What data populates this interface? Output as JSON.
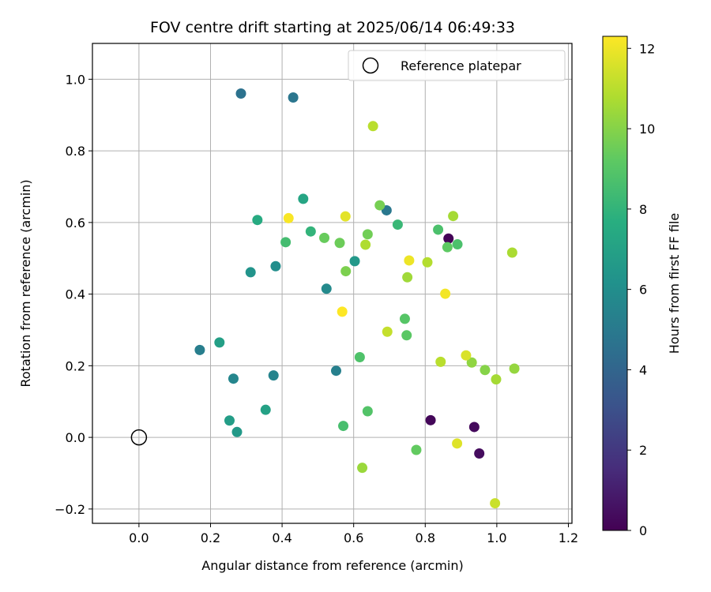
{
  "chart_data": {
    "type": "scatter",
    "title": "FOV centre drift starting at 2025/06/14 06:49:33",
    "xlabel": "Angular distance from reference (arcmin)",
    "ylabel": "Rotation from reference (arcmin)",
    "xlim": [
      -0.13,
      1.21
    ],
    "ylim": [
      -0.24,
      1.1
    ],
    "xticks": [
      0.0,
      0.2,
      0.4,
      0.6,
      0.8,
      1.0,
      1.2
    ],
    "xtick_labels": [
      "0.0",
      "0.2",
      "0.4",
      "0.6",
      "0.8",
      "1.0",
      "1.2"
    ],
    "yticks": [
      -0.2,
      0.0,
      0.2,
      0.4,
      0.6,
      0.8,
      1.0
    ],
    "ytick_labels": [
      "−0.2",
      "0.0",
      "0.2",
      "0.4",
      "0.6",
      "0.8",
      "1.0"
    ],
    "grid": true,
    "legend": {
      "placement": "top-right",
      "entries": [
        "Reference platepar"
      ]
    },
    "reference_point": {
      "x": 0.0,
      "y": 0.0
    },
    "colorbar": {
      "label": "Hours from first FF file",
      "colormap": "viridis",
      "range": [
        0,
        12.3
      ],
      "ticks": [
        0,
        2,
        4,
        6,
        8,
        10,
        12
      ],
      "tick_labels": [
        "0",
        "2",
        "4",
        "6",
        "8",
        "10",
        "12"
      ]
    },
    "points": [
      {
        "x": 0.865,
        "y": 0.555,
        "c": 0.1
      },
      {
        "x": 0.815,
        "y": 0.048,
        "c": 0.2
      },
      {
        "x": 0.937,
        "y": 0.029,
        "c": 0.3
      },
      {
        "x": 0.951,
        "y": -0.045,
        "c": 0.4
      },
      {
        "x": 0.285,
        "y": 0.96,
        "c": 4.6
      },
      {
        "x": 0.431,
        "y": 0.949,
        "c": 4.8
      },
      {
        "x": 0.692,
        "y": 0.634,
        "c": 4.9
      },
      {
        "x": 0.17,
        "y": 0.244,
        "c": 5.2
      },
      {
        "x": 0.551,
        "y": 0.186,
        "c": 5.3
      },
      {
        "x": 0.376,
        "y": 0.173,
        "c": 5.5
      },
      {
        "x": 0.264,
        "y": 0.164,
        "c": 5.6
      },
      {
        "x": 0.524,
        "y": 0.415,
        "c": 5.8
      },
      {
        "x": 0.382,
        "y": 0.478,
        "c": 6.0
      },
      {
        "x": 0.312,
        "y": 0.461,
        "c": 6.3
      },
      {
        "x": 0.603,
        "y": 0.492,
        "c": 6.5
      },
      {
        "x": 0.274,
        "y": 0.015,
        "c": 6.6
      },
      {
        "x": 0.253,
        "y": 0.047,
        "c": 6.8
      },
      {
        "x": 0.225,
        "y": 0.265,
        "c": 6.9
      },
      {
        "x": 0.354,
        "y": 0.077,
        "c": 7.0
      },
      {
        "x": 0.459,
        "y": 0.666,
        "c": 7.2
      },
      {
        "x": 0.331,
        "y": 0.607,
        "c": 7.5
      },
      {
        "x": 0.48,
        "y": 0.575,
        "c": 8.0
      },
      {
        "x": 0.723,
        "y": 0.594,
        "c": 8.2
      },
      {
        "x": 0.41,
        "y": 0.545,
        "c": 8.5
      },
      {
        "x": 0.571,
        "y": 0.032,
        "c": 8.6
      },
      {
        "x": 0.836,
        "y": 0.58,
        "c": 8.7
      },
      {
        "x": 0.89,
        "y": 0.539,
        "c": 8.7
      },
      {
        "x": 0.617,
        "y": 0.224,
        "c": 8.8
      },
      {
        "x": 0.639,
        "y": 0.073,
        "c": 8.9
      },
      {
        "x": 0.743,
        "y": 0.331,
        "c": 9.0
      },
      {
        "x": 0.748,
        "y": 0.285,
        "c": 9.1
      },
      {
        "x": 0.862,
        "y": 0.531,
        "c": 9.2
      },
      {
        "x": 0.775,
        "y": -0.035,
        "c": 9.3
      },
      {
        "x": 0.518,
        "y": 0.557,
        "c": 9.4
      },
      {
        "x": 0.561,
        "y": 0.543,
        "c": 9.5
      },
      {
        "x": 0.639,
        "y": 0.567,
        "c": 9.6
      },
      {
        "x": 0.673,
        "y": 0.648,
        "c": 9.7
      },
      {
        "x": 0.578,
        "y": 0.464,
        "c": 9.8
      },
      {
        "x": 0.967,
        "y": 0.188,
        "c": 10.0
      },
      {
        "x": 0.93,
        "y": 0.209,
        "c": 10.2
      },
      {
        "x": 1.049,
        "y": 0.192,
        "c": 10.3
      },
      {
        "x": 0.624,
        "y": -0.085,
        "c": 10.4
      },
      {
        "x": 0.75,
        "y": 0.447,
        "c": 10.5
      },
      {
        "x": 0.998,
        "y": 0.162,
        "c": 10.6
      },
      {
        "x": 0.878,
        "y": 0.618,
        "c": 10.6
      },
      {
        "x": 1.043,
        "y": 0.516,
        "c": 10.7
      },
      {
        "x": 0.633,
        "y": 0.538,
        "c": 10.8
      },
      {
        "x": 0.806,
        "y": 0.489,
        "c": 10.9
      },
      {
        "x": 0.654,
        "y": 0.869,
        "c": 11.0
      },
      {
        "x": 0.843,
        "y": 0.211,
        "c": 11.0
      },
      {
        "x": 0.694,
        "y": 0.295,
        "c": 11.2
      },
      {
        "x": 0.995,
        "y": -0.184,
        "c": 11.3
      },
      {
        "x": 0.914,
        "y": 0.229,
        "c": 11.6
      },
      {
        "x": 0.889,
        "y": -0.017,
        "c": 11.7
      },
      {
        "x": 0.577,
        "y": 0.617,
        "c": 11.8
      },
      {
        "x": 0.755,
        "y": 0.494,
        "c": 12.0
      },
      {
        "x": 0.856,
        "y": 0.401,
        "c": 12.1
      },
      {
        "x": 0.418,
        "y": 0.612,
        "c": 12.2
      },
      {
        "x": 0.568,
        "y": 0.351,
        "c": 12.3
      }
    ]
  }
}
